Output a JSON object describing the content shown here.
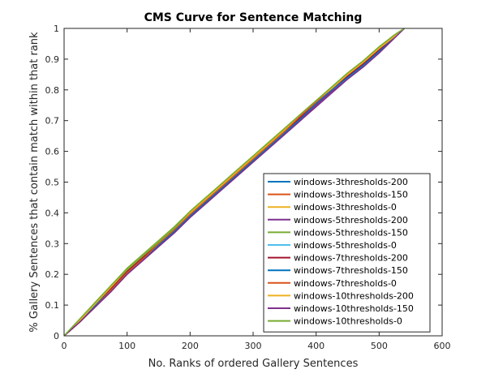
{
  "chart_data": {
    "type": "line",
    "title": "CMS Curve for Sentence Matching",
    "xlabel": "No. Ranks of ordered Gallery Sentences",
    "ylabel": "% Gallery Sentences that contain match within that rank",
    "xlim": [
      0,
      600
    ],
    "ylim": [
      0,
      1
    ],
    "xticks": [
      0,
      100,
      200,
      300,
      400,
      500,
      600
    ],
    "yticks": [
      0,
      0.1,
      0.2,
      0.3,
      0.4,
      0.5,
      0.6,
      0.7,
      0.8,
      0.9,
      1
    ],
    "grid": false,
    "legend_position": "bottom-right",
    "x": [
      0,
      25,
      50,
      75,
      100,
      125,
      150,
      175,
      200,
      225,
      250,
      275,
      300,
      325,
      350,
      375,
      400,
      425,
      450,
      475,
      500,
      525,
      540
    ],
    "series": [
      {
        "name": "windows-3thresholds-200",
        "color": "#0072BD",
        "values": [
          0,
          0.05,
          0.1,
          0.155,
          0.21,
          0.255,
          0.3,
          0.345,
          0.395,
          0.44,
          0.485,
          0.53,
          0.575,
          0.62,
          0.665,
          0.715,
          0.76,
          0.8,
          0.845,
          0.885,
          0.93,
          0.975,
          1
        ]
      },
      {
        "name": "windows-3thresholds-150",
        "color": "#D95319",
        "values": [
          0,
          0.045,
          0.095,
          0.15,
          0.205,
          0.25,
          0.295,
          0.34,
          0.39,
          0.435,
          0.48,
          0.525,
          0.57,
          0.62,
          0.665,
          0.71,
          0.755,
          0.8,
          0.845,
          0.89,
          0.93,
          0.975,
          1
        ]
      },
      {
        "name": "windows-3thresholds-0",
        "color": "#EDB120",
        "values": [
          0,
          0.05,
          0.105,
          0.16,
          0.215,
          0.26,
          0.305,
          0.35,
          0.4,
          0.445,
          0.49,
          0.535,
          0.58,
          0.625,
          0.67,
          0.72,
          0.765,
          0.805,
          0.85,
          0.89,
          0.935,
          0.975,
          1
        ]
      },
      {
        "name": "windows-5thresholds-200",
        "color": "#7E2F8E",
        "values": [
          0,
          0.045,
          0.095,
          0.145,
          0.2,
          0.245,
          0.29,
          0.335,
          0.385,
          0.43,
          0.475,
          0.52,
          0.565,
          0.61,
          0.655,
          0.7,
          0.745,
          0.79,
          0.835,
          0.875,
          0.92,
          0.97,
          1
        ]
      },
      {
        "name": "windows-5thresholds-150",
        "color": "#77AC30",
        "values": [
          0,
          0.055,
          0.11,
          0.165,
          0.22,
          0.265,
          0.31,
          0.355,
          0.405,
          0.45,
          0.495,
          0.54,
          0.585,
          0.63,
          0.675,
          0.72,
          0.765,
          0.81,
          0.855,
          0.895,
          0.94,
          0.98,
          1
        ]
      },
      {
        "name": "windows-5thresholds-0",
        "color": "#4DBEEE",
        "values": [
          0,
          0.05,
          0.1,
          0.155,
          0.21,
          0.255,
          0.3,
          0.345,
          0.395,
          0.44,
          0.485,
          0.53,
          0.575,
          0.62,
          0.665,
          0.71,
          0.76,
          0.805,
          0.845,
          0.885,
          0.93,
          0.975,
          1
        ]
      },
      {
        "name": "windows-7thresholds-200",
        "color": "#A2142F",
        "values": [
          0,
          0.045,
          0.1,
          0.155,
          0.21,
          0.255,
          0.3,
          0.345,
          0.39,
          0.435,
          0.48,
          0.525,
          0.575,
          0.625,
          0.665,
          0.71,
          0.755,
          0.8,
          0.845,
          0.885,
          0.93,
          0.975,
          1
        ]
      },
      {
        "name": "windows-7thresholds-150",
        "color": "#0072BD",
        "values": [
          0,
          0.05,
          0.1,
          0.15,
          0.205,
          0.25,
          0.295,
          0.34,
          0.39,
          0.435,
          0.48,
          0.525,
          0.57,
          0.615,
          0.66,
          0.705,
          0.755,
          0.8,
          0.84,
          0.88,
          0.925,
          0.97,
          1
        ]
      },
      {
        "name": "windows-7thresholds-0",
        "color": "#D95319",
        "values": [
          0,
          0.045,
          0.095,
          0.15,
          0.205,
          0.25,
          0.3,
          0.345,
          0.395,
          0.44,
          0.485,
          0.53,
          0.575,
          0.62,
          0.665,
          0.715,
          0.76,
          0.805,
          0.85,
          0.89,
          0.935,
          0.975,
          1
        ]
      },
      {
        "name": "windows-10thresholds-200",
        "color": "#EDB120",
        "values": [
          0,
          0.05,
          0.105,
          0.16,
          0.215,
          0.26,
          0.305,
          0.35,
          0.4,
          0.445,
          0.49,
          0.535,
          0.58,
          0.625,
          0.67,
          0.72,
          0.765,
          0.805,
          0.85,
          0.89,
          0.935,
          0.975,
          1
        ]
      },
      {
        "name": "windows-10thresholds-150",
        "color": "#7E2F8E",
        "values": [
          0,
          0.045,
          0.095,
          0.145,
          0.2,
          0.245,
          0.29,
          0.335,
          0.385,
          0.43,
          0.475,
          0.52,
          0.565,
          0.61,
          0.655,
          0.7,
          0.75,
          0.795,
          0.835,
          0.875,
          0.92,
          0.97,
          1
        ]
      },
      {
        "name": "windows-10thresholds-0",
        "color": "#77AC30",
        "values": [
          0,
          0.055,
          0.11,
          0.165,
          0.215,
          0.26,
          0.305,
          0.35,
          0.405,
          0.45,
          0.495,
          0.54,
          0.585,
          0.63,
          0.675,
          0.72,
          0.765,
          0.81,
          0.855,
          0.895,
          0.94,
          0.98,
          1
        ]
      }
    ]
  }
}
